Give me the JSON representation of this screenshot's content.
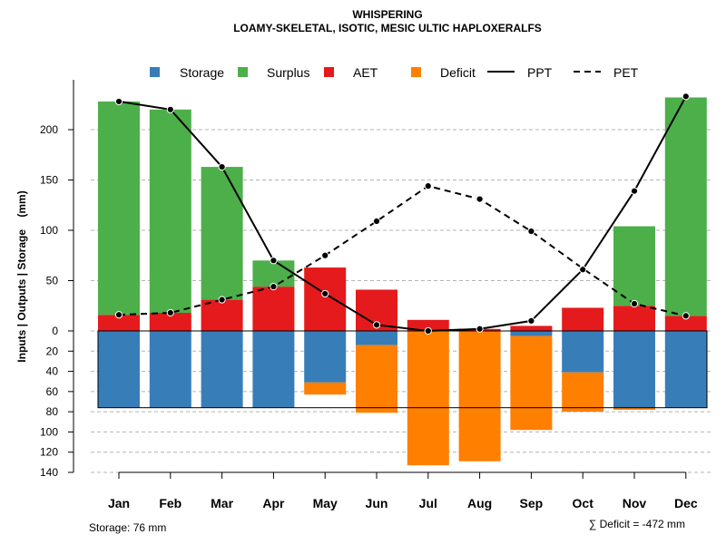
{
  "chart_data": {
    "type": "bar",
    "title": "WHISPERING",
    "subtitle": "LOAMY-SKELETAL, ISOTIC, MESIC ULTIC HAPLOXERALFS",
    "ylabel": "Inputs | Outputs | Storage    (mm)",
    "categories": [
      "Jan",
      "Feb",
      "Mar",
      "Apr",
      "May",
      "Jun",
      "Jul",
      "Aug",
      "Sep",
      "Oct",
      "Nov",
      "Dec"
    ],
    "upper_ticks": [
      "0",
      "50",
      "100",
      "150",
      "200"
    ],
    "lower_ticks": [
      "20",
      "40",
      "60",
      "80",
      "100",
      "120",
      "140"
    ],
    "ylim_upper": [
      0,
      240
    ],
    "ylim_lower": [
      0,
      140
    ],
    "legend": {
      "storage": "Storage",
      "surplus": "Surplus",
      "aet": "AET",
      "deficit": "Deficit",
      "ppt": "PPT",
      "pet": "PET"
    },
    "colors": {
      "storage": "#377EB8",
      "surplus": "#4DAF4A",
      "aet": "#E41A1C",
      "deficit": "#FF7F00"
    },
    "series": [
      {
        "name": "AET",
        "values": [
          16,
          18,
          31,
          44,
          63,
          41,
          11,
          2,
          5,
          23,
          25,
          15
        ]
      },
      {
        "name": "Surplus",
        "values": [
          212,
          202,
          132,
          26,
          0,
          0,
          0,
          0,
          0,
          0,
          79,
          217
        ]
      },
      {
        "name": "Storage",
        "values": [
          76,
          76,
          76,
          76,
          51,
          14,
          0,
          0,
          5,
          41,
          76,
          76
        ]
      },
      {
        "name": "Deficit",
        "values": [
          0,
          0,
          0,
          0,
          12,
          67,
          133,
          129,
          93,
          39,
          2,
          0
        ]
      },
      {
        "name": "PPT",
        "values": [
          228,
          220,
          163,
          70,
          37,
          6,
          0,
          2,
          10,
          61,
          139,
          233
        ]
      },
      {
        "name": "PET",
        "values": [
          16,
          18,
          31,
          44,
          75,
          109,
          144,
          131,
          99,
          62,
          27,
          15
        ]
      }
    ],
    "footer_left": "Storage: 76 mm",
    "footer_right": "∑ Deficit = -472 mm"
  }
}
